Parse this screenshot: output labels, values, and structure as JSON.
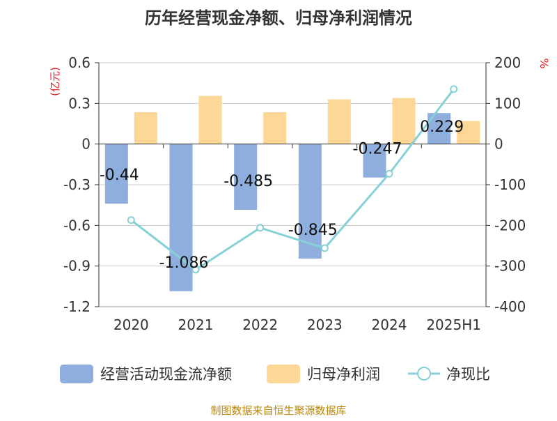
{
  "chart_data": {
    "type": "bar",
    "title": "历年经营现金净额、归母净利润情况",
    "source": "制图数据来自恒生聚源数据库",
    "left_axis": {
      "unit": "(亿元)",
      "range": [
        -1.2,
        0.6
      ],
      "ticks": [
        0.6,
        0.3,
        0,
        -0.3,
        -0.6,
        -0.9,
        -1.2
      ],
      "tick_labels": [
        "0.6",
        "0.3",
        "0",
        "-0.3",
        "-0.6",
        "-0.9",
        "-1.2"
      ]
    },
    "right_axis": {
      "unit": "%",
      "range": [
        -400,
        200
      ],
      "ticks": [
        200,
        100,
        0,
        -100,
        -200,
        -300,
        -400
      ],
      "tick_labels": [
        "200",
        "100",
        "0",
        "-100",
        "-200",
        "-300",
        "-400"
      ]
    },
    "categories": [
      "2020",
      "2021",
      "2022",
      "2023",
      "2024",
      "2025H1"
    ],
    "series": [
      {
        "name": "经营活动现金流净额",
        "type": "bar",
        "axis": "left",
        "color": "#8eaedd",
        "values": [
          -0.44,
          -1.086,
          -0.485,
          -0.845,
          -0.247,
          0.229
        ],
        "labels": [
          "-0.44",
          "-1.086",
          "-0.485",
          "-0.845",
          "-0.247",
          "0.229"
        ]
      },
      {
        "name": "归母净利润",
        "type": "bar",
        "axis": "left",
        "color": "#fdd796",
        "values": [
          0.235,
          0.355,
          0.235,
          0.33,
          0.34,
          0.17
        ]
      },
      {
        "name": "净现比",
        "type": "line",
        "axis": "right",
        "color": "#86d1d6",
        "values": [
          -187,
          -309,
          -206,
          -256,
          -73,
          135
        ]
      }
    ],
    "grid": true,
    "legend_position": "bottom"
  }
}
